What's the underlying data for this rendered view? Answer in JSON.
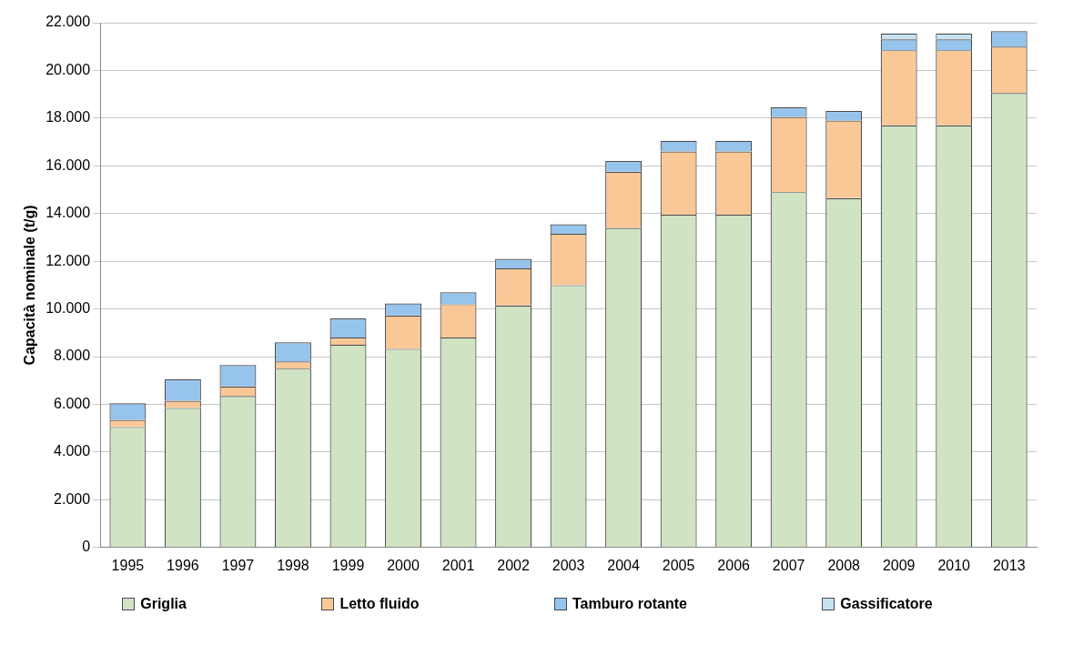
{
  "chart_data": {
    "type": "bar",
    "stacked": true,
    "ylabel": "Capacità nominale (t/g)",
    "categories": [
      "1995",
      "1996",
      "1997",
      "1998",
      "1999",
      "2000",
      "2001",
      "2002",
      "2003",
      "2004",
      "2005",
      "2006",
      "2007",
      "2008",
      "2009",
      "2010",
      "2013"
    ],
    "series": [
      {
        "name": "Griglia",
        "color": "#d0e4c4",
        "values": [
          5050,
          5850,
          6350,
          7500,
          8500,
          8330,
          8800,
          10150,
          11000,
          13400,
          13950,
          13950,
          14900,
          14650,
          17700,
          17700,
          19050
        ]
      },
      {
        "name": "Letto fluido",
        "color": "#fac896",
        "values": [
          300,
          300,
          400,
          300,
          300,
          1400,
          1400,
          1550,
          2150,
          2350,
          2650,
          2650,
          3150,
          3250,
          3150,
          3150,
          1950
        ]
      },
      {
        "name": "Tamburo rotante",
        "color": "#96c4ec",
        "values": [
          700,
          900,
          900,
          800,
          800,
          500,
          500,
          400,
          400,
          450,
          450,
          450,
          400,
          400,
          450,
          450,
          650
        ]
      },
      {
        "name": "Gassificatore",
        "color": "#c8e2f4",
        "values": [
          0,
          0,
          0,
          0,
          0,
          0,
          0,
          0,
          0,
          0,
          0,
          0,
          0,
          0,
          250,
          250,
          0
        ]
      }
    ],
    "ylim": [
      0,
      22000
    ],
    "yticks": [
      0,
      {
        "value": 2000,
        "label": "2.000"
      },
      {
        "value": 4000,
        "label": "4.000"
      },
      {
        "value": 6000,
        "label": "6.000"
      },
      {
        "value": 8000,
        "label": "8.000"
      },
      {
        "value": 10000,
        "label": "10.000"
      },
      {
        "value": 12000,
        "label": "12.000"
      },
      {
        "value": 14000,
        "label": "14.000"
      },
      {
        "value": 16000,
        "label": "16.000"
      },
      {
        "value": 18000,
        "label": "18.000"
      },
      {
        "value": 20000,
        "label": "20.000"
      },
      {
        "value": 22000,
        "label": "22.000"
      }
    ],
    "grid": "y",
    "legend": "bottom"
  }
}
